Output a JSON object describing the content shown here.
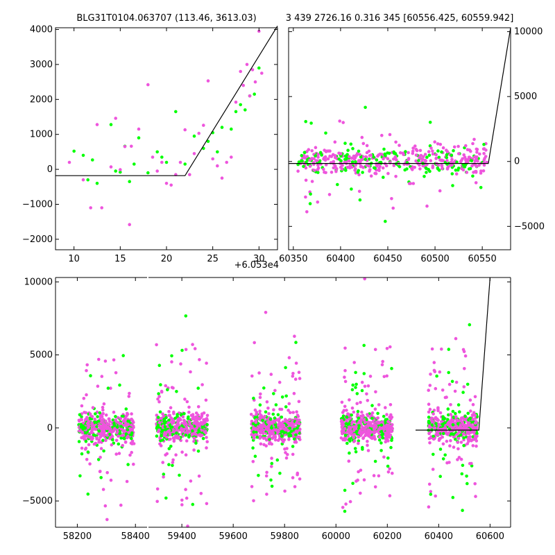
{
  "chart_data": [
    {
      "type": "scatter",
      "title": "BLG31T0104.063707 (113.46, 3613.03)",
      "xlim": [
        8,
        32
      ],
      "ylim": [
        -2300,
        4050
      ],
      "xticks": [
        10,
        15,
        20,
        25,
        30
      ],
      "yticks": [
        -2000,
        -1000,
        0,
        1000,
        2000,
        3000,
        4000
      ],
      "x_offset_label": "",
      "colors": {
        "series_a": "#00ff00",
        "series_b": "#ee55dd",
        "model": "#000000"
      },
      "series": [
        {
          "color_key": "series_a",
          "x": [
            10,
            11,
            11.5,
            12,
            12.5,
            14,
            14.5,
            15,
            15.5,
            16,
            16.5,
            17,
            18,
            19,
            19.5,
            20,
            21,
            22,
            23,
            24,
            24.5,
            25,
            25.5,
            26,
            27,
            27.5,
            28,
            28.5,
            29,
            29.5,
            30
          ],
          "y": [
            520,
            400,
            -300,
            270,
            -400,
            1280,
            -50,
            -80,
            660,
            -350,
            150,
            900,
            -100,
            500,
            350,
            200,
            1650,
            150,
            950,
            600,
            800,
            1050,
            500,
            1200,
            1150,
            1650,
            1850,
            1700,
            2100,
            2150,
            2900
          ]
        },
        {
          "color_key": "series_b",
          "x": [
            9.5,
            11,
            11.8,
            12.5,
            13,
            14,
            14.5,
            15,
            15.5,
            16,
            16.2,
            17,
            18,
            18.5,
            19,
            19.5,
            20,
            20.5,
            21,
            21.5,
            22,
            22.5,
            23,
            23.5,
            24,
            24.5,
            25,
            25.5,
            26,
            26.5,
            27,
            27.5,
            28,
            28.3,
            28.7,
            29,
            29.3,
            29.6,
            30,
            30.3
          ],
          "y": [
            200,
            -300,
            -1100,
            1280,
            -1100,
            70,
            1460,
            -10,
            650,
            -1580,
            660,
            1150,
            2420,
            350,
            -50,
            200,
            -400,
            -450,
            -150,
            200,
            1130,
            -150,
            450,
            1030,
            1260,
            2530,
            300,
            100,
            -250,
            200,
            350,
            1920,
            2800,
            2400,
            3000,
            2100,
            2850,
            2500,
            3950,
            2750
          ]
        }
      ],
      "model": {
        "x": [
          8,
          22,
          32
        ],
        "y": [
          -180,
          -180,
          4100
        ]
      }
    },
    {
      "type": "scatter",
      "title": "3 439 2726.16 0.316 345 [60556.425, 60559.942]",
      "xlim": [
        60345,
        60580
      ],
      "ylim": [
        -6800,
        10300
      ],
      "xticks": [
        60350,
        60400,
        60450,
        60500,
        60550
      ],
      "yticks": [
        -5000,
        0,
        5000,
        10000
      ],
      "x_offset_label": "+6.053e4",
      "yaxis_side": "right",
      "model": {
        "x": [
          60345,
          60556.4,
          60580
        ],
        "y": [
          -150,
          -150,
          10300
        ]
      }
    },
    {
      "type": "scatter",
      "title": "",
      "broken_axis": true,
      "segments": [
        {
          "xlim": [
            58125,
            58440
          ],
          "xticks": [
            58200,
            58400
          ]
        },
        {
          "xlim": [
            59270,
            60680
          ],
          "xticks": [
            59400,
            59600,
            59800,
            60000,
            60200,
            60400,
            60600
          ]
        }
      ],
      "ylim": [
        -6800,
        10300
      ],
      "yticks": [
        -5000,
        0,
        5000,
        10000
      ],
      "clusters": [
        {
          "segment": 0,
          "center": 58300,
          "halfwidth": 95
        },
        {
          "segment": 1,
          "center": 59400,
          "halfwidth": 100
        },
        {
          "segment": 1,
          "center": 59765,
          "halfwidth": 95
        },
        {
          "segment": 1,
          "center": 60120,
          "halfwidth": 100
        },
        {
          "segment": 1,
          "center": 60455,
          "halfwidth": 95
        }
      ],
      "model": {
        "segment": 1,
        "x": [
          60310,
          60556.4,
          60600
        ],
        "y": [
          -150,
          -150,
          10300
        ]
      }
    }
  ]
}
